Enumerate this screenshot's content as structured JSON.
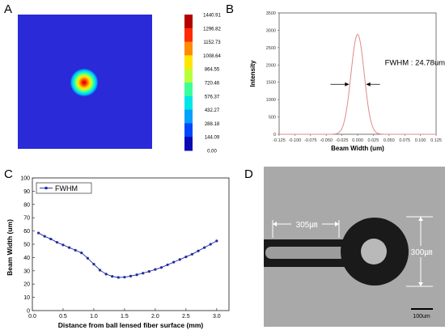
{
  "panels": {
    "a": {
      "letter": "A"
    },
    "b": {
      "letter": "B"
    },
    "c": {
      "letter": "C"
    },
    "d": {
      "letter": "D"
    }
  },
  "colors": {
    "heatmap_background": "#2a2ad8",
    "line_b": "#e08a8a",
    "line_c": "#1f2aa0",
    "micrograph_bg": "#a9a9a9"
  },
  "chart_data": [
    {
      "id": "A",
      "type": "heatmap",
      "colorbar": {
        "ticks": [
          "1440.91",
          "1296.82",
          "1152.73",
          "1008.64",
          "864.55",
          "720.46",
          "576.37",
          "432.27",
          "288.18",
          "144.09",
          "0.00"
        ],
        "colors": [
          "#b40000",
          "#ff2a00",
          "#ff8c00",
          "#ffe600",
          "#b8ff3a",
          "#3cff9a",
          "#00e6e6",
          "#00a0ff",
          "#0046ff",
          "#0a0ab4"
        ]
      },
      "spot": {
        "peak": 1440.91,
        "background": 0.0
      }
    },
    {
      "id": "B",
      "type": "line",
      "xlabel": "Beam Width (um)",
      "ylabel": "Intensity",
      "xlim": [
        -0.125,
        0.125
      ],
      "ylim": [
        0,
        3500
      ],
      "xticks": [
        "-0.125",
        "-0.100",
        "-0.075",
        "-0.050",
        "-0.025",
        "0.000",
        "0.025",
        "0.050",
        "0.075",
        "0.100",
        "0.125"
      ],
      "yticks": [
        "0",
        "500",
        "1000",
        "1500",
        "2000",
        "2500",
        "3000",
        "3500"
      ],
      "annotation": "FWHM : 24.78um",
      "series": [
        {
          "peak": 2880,
          "center": 0.0,
          "fwhm": 0.02478
        }
      ]
    },
    {
      "id": "C",
      "type": "line",
      "xlabel": "Distance from ball lensed fiber surface (mm)",
      "ylabel": "Beam Width (um)",
      "xlim": [
        0,
        3.2
      ],
      "ylim": [
        0,
        100
      ],
      "xticks": [
        "0.0",
        "0.5",
        "1.0",
        "1.5",
        "2.0",
        "2.5",
        "3.0"
      ],
      "yticks": [
        "0",
        "10",
        "20",
        "30",
        "40",
        "50",
        "60",
        "70",
        "80",
        "90",
        "100"
      ],
      "legend": "FWHM",
      "legend_position": "top-left",
      "series": [
        {
          "name": "FWHM",
          "x": [
            0.1,
            0.2,
            0.3,
            0.4,
            0.5,
            0.6,
            0.7,
            0.8,
            0.9,
            1.0,
            1.1,
            1.2,
            1.3,
            1.4,
            1.5,
            1.6,
            1.7,
            1.8,
            1.9,
            2.0,
            2.1,
            2.2,
            2.3,
            2.4,
            2.5,
            2.6,
            2.7,
            2.8,
            2.9,
            3.0
          ],
          "y": [
            58.5,
            56,
            54,
            51.5,
            49.5,
            47.5,
            45.5,
            43.5,
            39.5,
            35,
            30.5,
            27.5,
            25.8,
            25,
            25.2,
            26,
            27,
            28.2,
            29.5,
            31,
            32.5,
            34.5,
            36.5,
            38.5,
            40.5,
            42.5,
            45,
            47.5,
            50,
            52.5
          ]
        }
      ]
    }
  ],
  "micrograph": {
    "label_305": "305㎛",
    "label_300": "300㎛",
    "scale_bar": "100um"
  }
}
